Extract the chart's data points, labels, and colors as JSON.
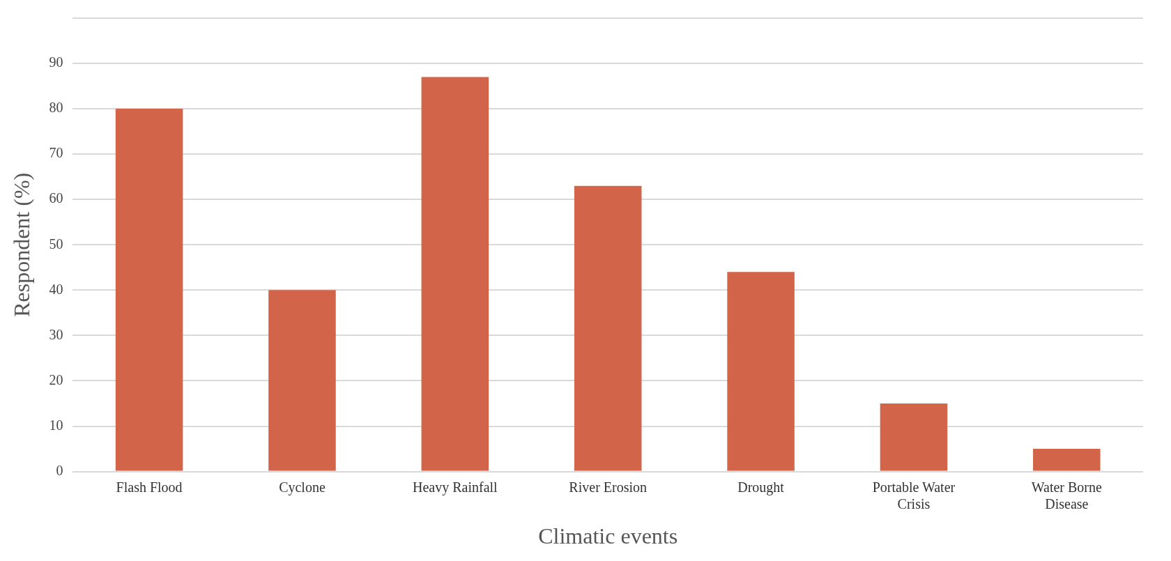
{
  "chart_data": {
    "type": "bar",
    "xlabel": "Climatic events",
    "ylabel": "Respondent (%)",
    "categories": [
      "Flash Flood",
      "Cyclone",
      "Heavy Rainfall",
      "River Erosion",
      "Drought",
      "Portable Water Crisis",
      "Water Borne Disease"
    ],
    "values": [
      80,
      40,
      87,
      63,
      44,
      15,
      5
    ],
    "color": "#d2644a",
    "ylim": [
      0,
      100
    ],
    "yticks": [
      0,
      10,
      20,
      30,
      40,
      50,
      60,
      70,
      80,
      90,
      {
        "value": 100,
        "label": null
      }
    ],
    "grid": "y",
    "legend": false
  }
}
